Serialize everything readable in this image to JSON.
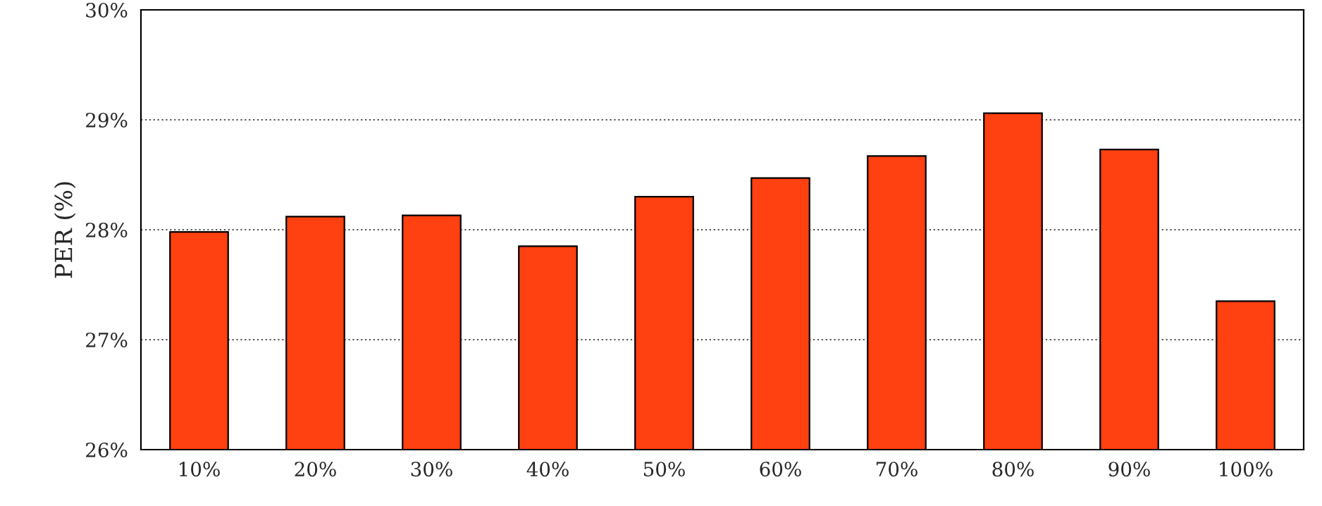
{
  "chart_data": {
    "type": "bar",
    "ylabel": "PER (%)",
    "categories": [
      "10%",
      "20%",
      "30%",
      "40%",
      "50%",
      "60%",
      "70%",
      "80%",
      "90%",
      "100%"
    ],
    "values": [
      27.98,
      28.12,
      28.13,
      27.85,
      28.3,
      28.47,
      28.67,
      29.06,
      28.73,
      27.35
    ],
    "color": "#ff4010",
    "ylim": [
      26,
      30
    ],
    "yticks": [
      {
        "value": 26,
        "label": "26%"
      },
      {
        "value": 27,
        "label": "27%"
      },
      {
        "value": 28,
        "label": "28%"
      },
      {
        "value": 29,
        "label": "29%"
      },
      {
        "value": 30,
        "label": "30%"
      }
    ],
    "grid": "y"
  }
}
